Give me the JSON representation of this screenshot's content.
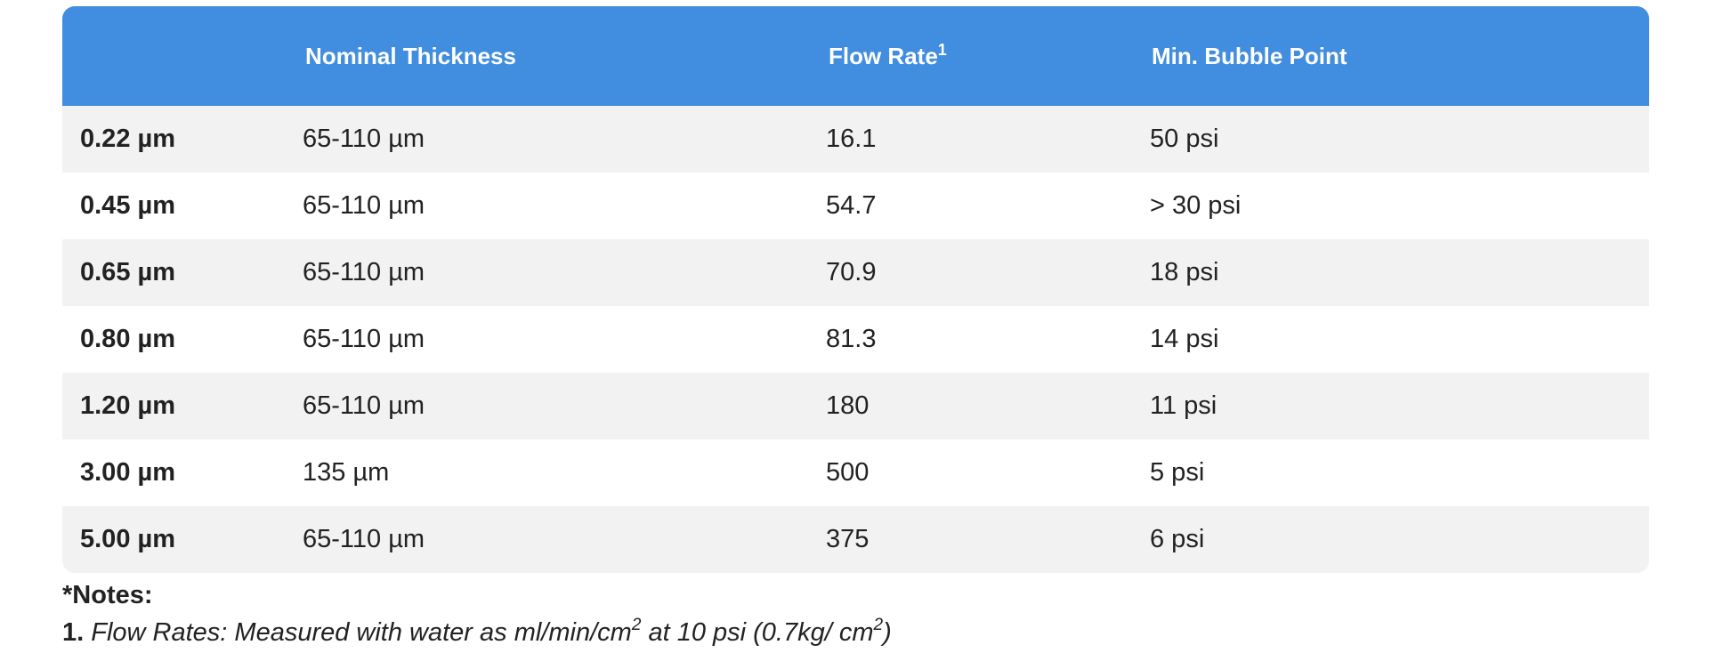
{
  "table": {
    "headers": {
      "size": "",
      "thickness": "Nominal Thickness",
      "flow": "Flow Rate",
      "flow_sup": "1",
      "bubble": "Min. Bubble Point"
    },
    "rows": [
      {
        "size": "0.22 µm",
        "thickness": "65-110 µm",
        "flow": "16.1",
        "bubble": "50 psi"
      },
      {
        "size": "0.45 µm",
        "thickness": "65-110 µm",
        "flow": "54.7",
        "bubble": "> 30 psi"
      },
      {
        "size": "0.65 µm",
        "thickness": "65-110 µm",
        "flow": "70.9",
        "bubble": "18 psi"
      },
      {
        "size": "0.80 µm",
        "thickness": "65-110 µm",
        "flow": "81.3",
        "bubble": "14 psi"
      },
      {
        "size": "1.20 µm",
        "thickness": "65-110 µm",
        "flow": "180",
        "bubble": "11 psi"
      },
      {
        "size": "3.00 µm",
        "thickness": "135 µm",
        "flow": "500",
        "bubble": "5 psi"
      },
      {
        "size": "5.00 µm",
        "thickness": "65-110 µm",
        "flow": "375",
        "bubble": "6 psi"
      }
    ]
  },
  "notes": {
    "title": "*Notes:",
    "items": [
      {
        "number": "1.",
        "text_a": "Flow Rates: Measured with water as ml/min/cm",
        "sup_a": "2",
        "text_b": " at 10 psi (0.7kg/ cm",
        "sup_b": "2",
        "text_c": ")"
      }
    ]
  },
  "colors": {
    "header_bg": "#418ddf",
    "stripe_bg": "#f2f2f2",
    "text": "#222222"
  }
}
